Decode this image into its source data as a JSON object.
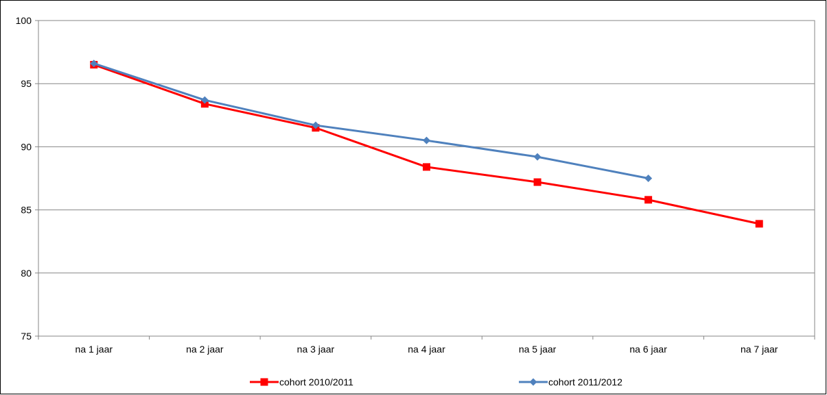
{
  "chart_data": {
    "type": "line",
    "title": "",
    "xlabel": "",
    "ylabel": "",
    "categories": [
      "na 1 jaar",
      "na 2 jaar",
      "na 3 jaar",
      "na 4 jaar",
      "na 5 jaar",
      "na 6 jaar",
      "na 7 jaar"
    ],
    "ylim": [
      75,
      100
    ],
    "yticks": [
      75,
      80,
      85,
      90,
      95,
      100
    ],
    "grid": true,
    "legend_position": "bottom",
    "series": [
      {
        "name": "cohort 2010/2011",
        "color": "#ff0000",
        "marker": "square",
        "values": [
          96.5,
          93.4,
          91.5,
          88.4,
          87.2,
          85.8,
          83.9
        ]
      },
      {
        "name": "cohort 2011/2012",
        "color": "#4f81bd",
        "marker": "diamond",
        "values": [
          96.6,
          93.7,
          91.7,
          90.5,
          89.2,
          87.5,
          null
        ]
      }
    ]
  }
}
